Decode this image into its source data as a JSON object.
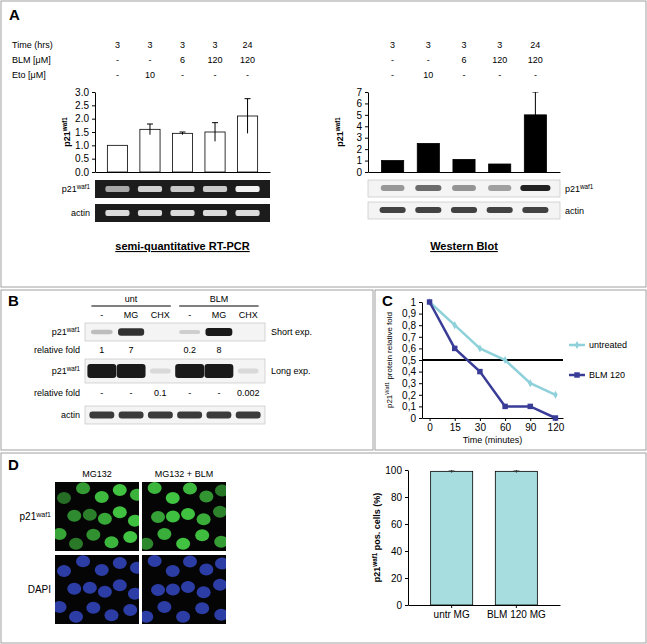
{
  "chart_data": [
    {
      "type": "bar",
      "title": "semi-quantitative RT-PCR",
      "y_label": "p21waf1",
      "categories": [
        null,
        null,
        null,
        null,
        null
      ],
      "values": [
        1.0,
        1.6,
        1.45,
        1.5,
        2.1
      ],
      "errors": [
        null,
        0.2,
        0.05,
        0.35,
        0.65
      ],
      "color": "#ffffff",
      "ylim": [
        0,
        3
      ],
      "yticks": [
        {
          "value": 0,
          "label": "0.0"
        },
        {
          "value": 0.5,
          "label": "0.5"
        },
        {
          "value": 1,
          "label": "1.0"
        },
        {
          "value": 1.5,
          "label": "1.5"
        },
        {
          "value": 2,
          "label": "2.0"
        },
        {
          "value": 2.5,
          "label": "2.5"
        },
        {
          "value": 3,
          "label": "3.0"
        }
      ],
      "tick_labels": "y"
    },
    {
      "type": "bar",
      "title": "Western Blot",
      "y_label": "p21waf1",
      "categories": [
        null,
        null,
        null,
        null,
        null
      ],
      "values": [
        1.0,
        2.5,
        1.1,
        0.7,
        5.0
      ],
      "errors": [
        null,
        null,
        null,
        null,
        2.0
      ],
      "color": "#000000",
      "ylim": [
        0,
        7
      ],
      "yticks": [
        0,
        1,
        2,
        3,
        4,
        5,
        6,
        7
      ],
      "tick_labels": "y"
    },
    {
      "type": "line",
      "y_label": "p21Waf1 protein relative fold",
      "x_label": "Time (minutes)",
      "categories": [
        "0",
        "15",
        "30",
        "60",
        "90",
        "120"
      ],
      "series": [
        {
          "name": "untreated",
          "color": "#8ed1da",
          "marker": "diamond",
          "values": [
            1,
            0.8,
            0.6,
            0.5,
            0.3,
            0.2
          ]
        },
        {
          "name": "BLM 120",
          "color": "#3a3d97",
          "marker": "square",
          "values": [
            1,
            0.6,
            0.4,
            0.1,
            0.1,
            0
          ]
        }
      ],
      "threshold": 0.5,
      "ylim": [
        0,
        1
      ],
      "yticks": [
        0,
        {
          "value": 0.1,
          "label": "0,1"
        },
        {
          "value": 0.2,
          "label": "0,2"
        },
        {
          "value": 0.3,
          "label": "0,3"
        },
        {
          "value": 0.4,
          "label": "0,4"
        },
        {
          "value": 0.5,
          "label": "0,5"
        },
        {
          "value": 0.6,
          "label": "0,6"
        },
        {
          "value": 0.7,
          "label": "0,7"
        },
        {
          "value": 0.8,
          "label": "0,8"
        },
        {
          "value": 0.9,
          "label": "0,9"
        },
        1
      ],
      "legend": "right"
    },
    {
      "type": "bar",
      "y_label": "p21waf1 pos. cells (%)",
      "categories": [
        "untr MG",
        "BLM 120 MG"
      ],
      "values": [
        99,
        99
      ],
      "errors": [
        1,
        1
      ],
      "color": "#a8dde0",
      "ylim": [
        0,
        100
      ],
      "yticks": [
        0,
        20,
        40,
        60,
        80,
        100
      ]
    }
  ],
  "figure": {
    "A": {
      "label": "A",
      "conditions": [
        {
          "label": "Time (hrs)",
          "values": [
            "3",
            "3",
            "3",
            "3",
            "24"
          ]
        },
        {
          "label": "BLM [μM]",
          "values": [
            "-",
            "-",
            "6",
            "120",
            "120"
          ]
        },
        {
          "label": "Eto [μM]",
          "values": [
            "-",
            "10",
            "-",
            "-",
            "-"
          ]
        }
      ],
      "conditions_right": [
        [
          "3",
          "3",
          "3",
          "3",
          "24"
        ],
        [
          "-",
          "-",
          "6",
          "120",
          "120"
        ],
        [
          "-",
          "10",
          "-",
          "-",
          "-"
        ]
      ],
      "gel_rows": [
        "p21waf1",
        "actin"
      ],
      "blot_rows": [
        "p21waf1",
        "actin"
      ]
    },
    "B": {
      "label": "B",
      "groups": [
        "unt",
        "BLM"
      ],
      "lanes": [
        "-",
        "MG",
        "CHX",
        "-",
        "MG",
        "CHX"
      ],
      "short": {
        "name": "p21waf1",
        "exposure": "Short exp.",
        "fold_label": "relative fold",
        "fold": [
          "1",
          "7",
          null,
          "0.2",
          "8",
          null
        ]
      },
      "long": {
        "name": "p21waf1",
        "exposure": "Long exp.",
        "fold_label": "relative fold",
        "fold": [
          "-",
          "-",
          "0.1",
          "-",
          "-",
          "0.002"
        ]
      },
      "loading": "actin"
    },
    "C": {
      "label": "C"
    },
    "D": {
      "label": "D",
      "columns": [
        "MG132",
        "MG132 + BLM"
      ],
      "rows": [
        "p21waf1",
        "DAPI"
      ]
    }
  }
}
